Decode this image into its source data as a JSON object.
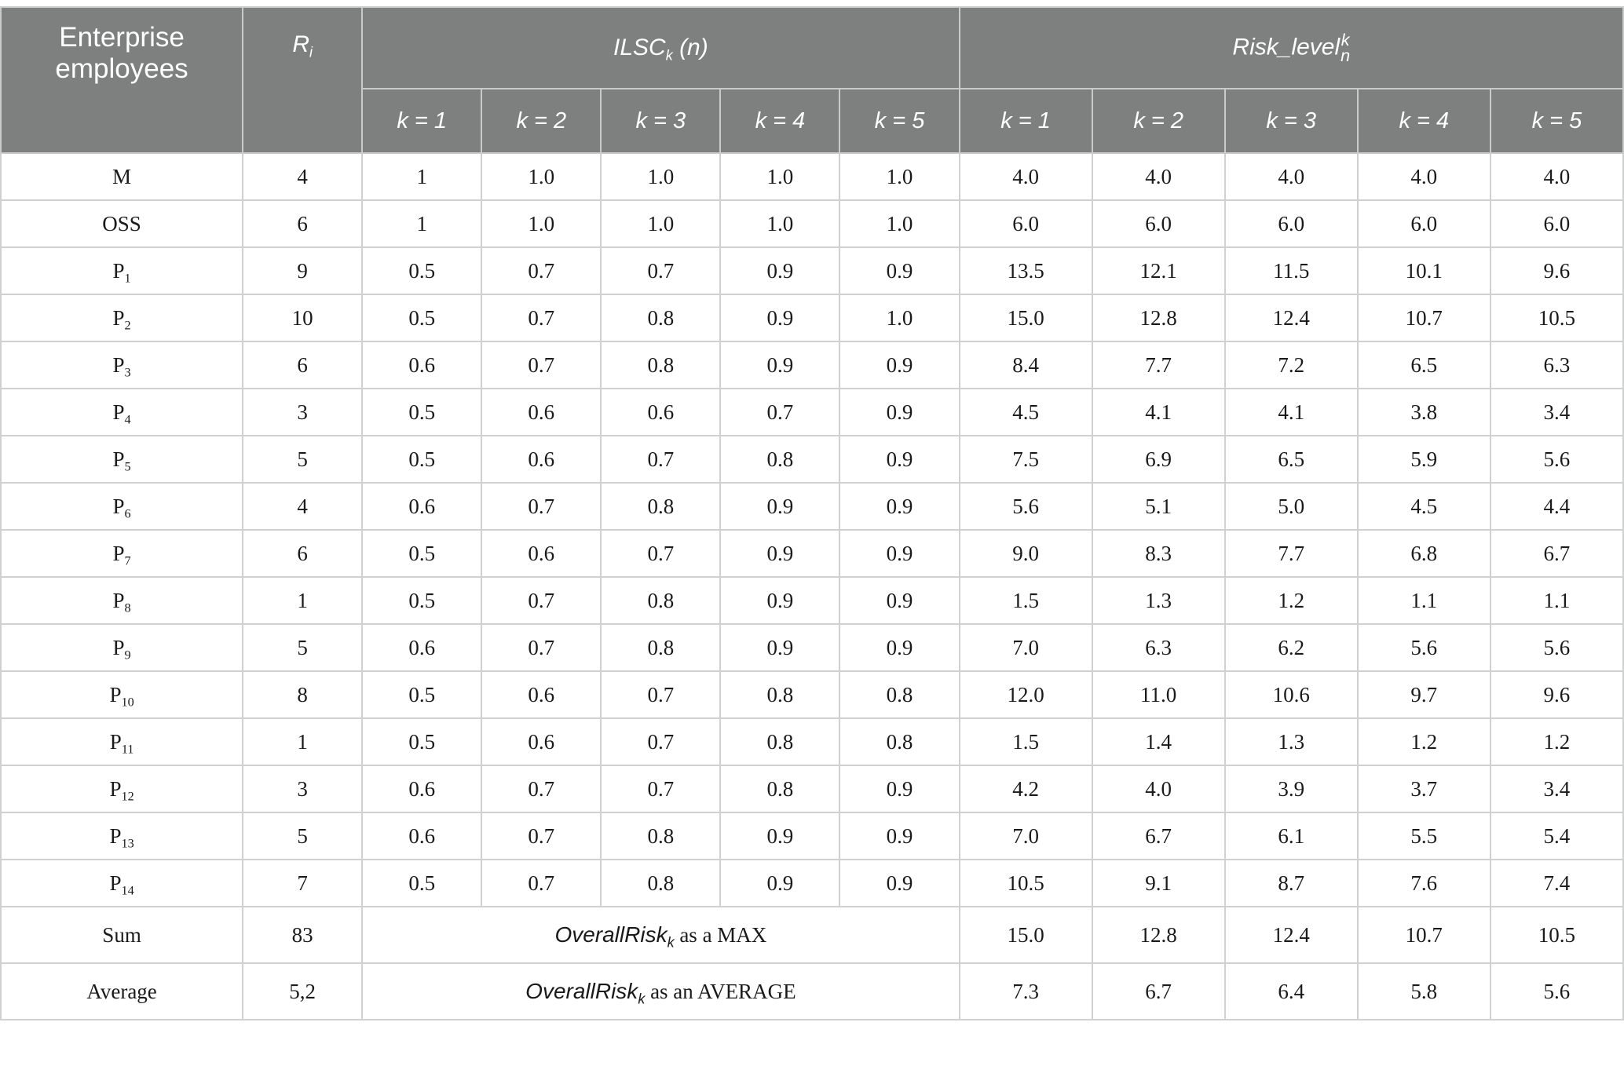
{
  "header": {
    "employees_label": "Enterprise employees",
    "r_symbol": "R",
    "r_sub": "i",
    "ilsc_symbol": "ILSC",
    "ilsc_sub": "k",
    "ilsc_arg": "(n)",
    "risk_symbol": "Risk_level",
    "risk_sup": "k",
    "risk_sub": "n",
    "k_labels": [
      "k = 1",
      "k = 2",
      "k = 3",
      "k = 4",
      "k = 5"
    ]
  },
  "rows": [
    {
      "name": "M",
      "sub": "",
      "r": "4",
      "ilsc": [
        "1",
        "1.0",
        "1.0",
        "1.0",
        "1.0"
      ],
      "risk": [
        "4.0",
        "4.0",
        "4.0",
        "4.0",
        "4.0"
      ]
    },
    {
      "name": "OSS",
      "sub": "",
      "r": "6",
      "ilsc": [
        "1",
        "1.0",
        "1.0",
        "1.0",
        "1.0"
      ],
      "risk": [
        "6.0",
        "6.0",
        "6.0",
        "6.0",
        "6.0"
      ]
    },
    {
      "name": "P",
      "sub": "1",
      "r": "9",
      "ilsc": [
        "0.5",
        "0.7",
        "0.7",
        "0.9",
        "0.9"
      ],
      "risk": [
        "13.5",
        "12.1",
        "11.5",
        "10.1",
        "9.6"
      ]
    },
    {
      "name": "P",
      "sub": "2",
      "r": "10",
      "ilsc": [
        "0.5",
        "0.7",
        "0.8",
        "0.9",
        "1.0"
      ],
      "risk": [
        "15.0",
        "12.8",
        "12.4",
        "10.7",
        "10.5"
      ]
    },
    {
      "name": "P",
      "sub": "3",
      "r": "6",
      "ilsc": [
        "0.6",
        "0.7",
        "0.8",
        "0.9",
        "0.9"
      ],
      "risk": [
        "8.4",
        "7.7",
        "7.2",
        "6.5",
        "6.3"
      ]
    },
    {
      "name": "P",
      "sub": "4",
      "r": "3",
      "ilsc": [
        "0.5",
        "0.6",
        "0.6",
        "0.7",
        "0.9"
      ],
      "risk": [
        "4.5",
        "4.1",
        "4.1",
        "3.8",
        "3.4"
      ]
    },
    {
      "name": "P",
      "sub": "5",
      "r": "5",
      "ilsc": [
        "0.5",
        "0.6",
        "0.7",
        "0.8",
        "0.9"
      ],
      "risk": [
        "7.5",
        "6.9",
        "6.5",
        "5.9",
        "5.6"
      ]
    },
    {
      "name": "P",
      "sub": "6",
      "r": "4",
      "ilsc": [
        "0.6",
        "0.7",
        "0.8",
        "0.9",
        "0.9"
      ],
      "risk": [
        "5.6",
        "5.1",
        "5.0",
        "4.5",
        "4.4"
      ]
    },
    {
      "name": "P",
      "sub": "7",
      "r": "6",
      "ilsc": [
        "0.5",
        "0.6",
        "0.7",
        "0.9",
        "0.9"
      ],
      "risk": [
        "9.0",
        "8.3",
        "7.7",
        "6.8",
        "6.7"
      ]
    },
    {
      "name": "P",
      "sub": "8",
      "r": "1",
      "ilsc": [
        "0.5",
        "0.7",
        "0.8",
        "0.9",
        "0.9"
      ],
      "risk": [
        "1.5",
        "1.3",
        "1.2",
        "1.1",
        "1.1"
      ]
    },
    {
      "name": "P",
      "sub": "9",
      "r": "5",
      "ilsc": [
        "0.6",
        "0.7",
        "0.8",
        "0.9",
        "0.9"
      ],
      "risk": [
        "7.0",
        "6.3",
        "6.2",
        "5.6",
        "5.6"
      ]
    },
    {
      "name": "P",
      "sub": "10",
      "r": "8",
      "ilsc": [
        "0.5",
        "0.6",
        "0.7",
        "0.8",
        "0.8"
      ],
      "risk": [
        "12.0",
        "11.0",
        "10.6",
        "9.7",
        "9.6"
      ]
    },
    {
      "name": "P",
      "sub": "11",
      "r": "1",
      "ilsc": [
        "0.5",
        "0.6",
        "0.7",
        "0.8",
        "0.8"
      ],
      "risk": [
        "1.5",
        "1.4",
        "1.3",
        "1.2",
        "1.2"
      ]
    },
    {
      "name": "P",
      "sub": "12",
      "r": "3",
      "ilsc": [
        "0.6",
        "0.7",
        "0.7",
        "0.8",
        "0.9"
      ],
      "risk": [
        "4.2",
        "4.0",
        "3.9",
        "3.7",
        "3.4"
      ]
    },
    {
      "name": "P",
      "sub": "13",
      "r": "5",
      "ilsc": [
        "0.6",
        "0.7",
        "0.8",
        "0.9",
        "0.9"
      ],
      "risk": [
        "7.0",
        "6.7",
        "6.1",
        "5.5",
        "5.4"
      ]
    },
    {
      "name": "P",
      "sub": "14",
      "r": "7",
      "ilsc": [
        "0.5",
        "0.7",
        "0.8",
        "0.9",
        "0.9"
      ],
      "risk": [
        "10.5",
        "9.1",
        "8.7",
        "7.6",
        "7.4"
      ]
    }
  ],
  "footer": [
    {
      "name": "Sum",
      "r": "83",
      "symbol": "OverallRisk",
      "symbol_sub": "k",
      "suffix": " as a MAX",
      "risk": [
        "15.0",
        "12.8",
        "12.4",
        "10.7",
        "10.5"
      ]
    },
    {
      "name": "Average",
      "r": "5,2",
      "symbol": "OverallRisk",
      "symbol_sub": "k",
      "suffix": " as an AVERAGE",
      "risk": [
        "7.3",
        "6.7",
        "6.4",
        "5.8",
        "5.6"
      ]
    }
  ]
}
